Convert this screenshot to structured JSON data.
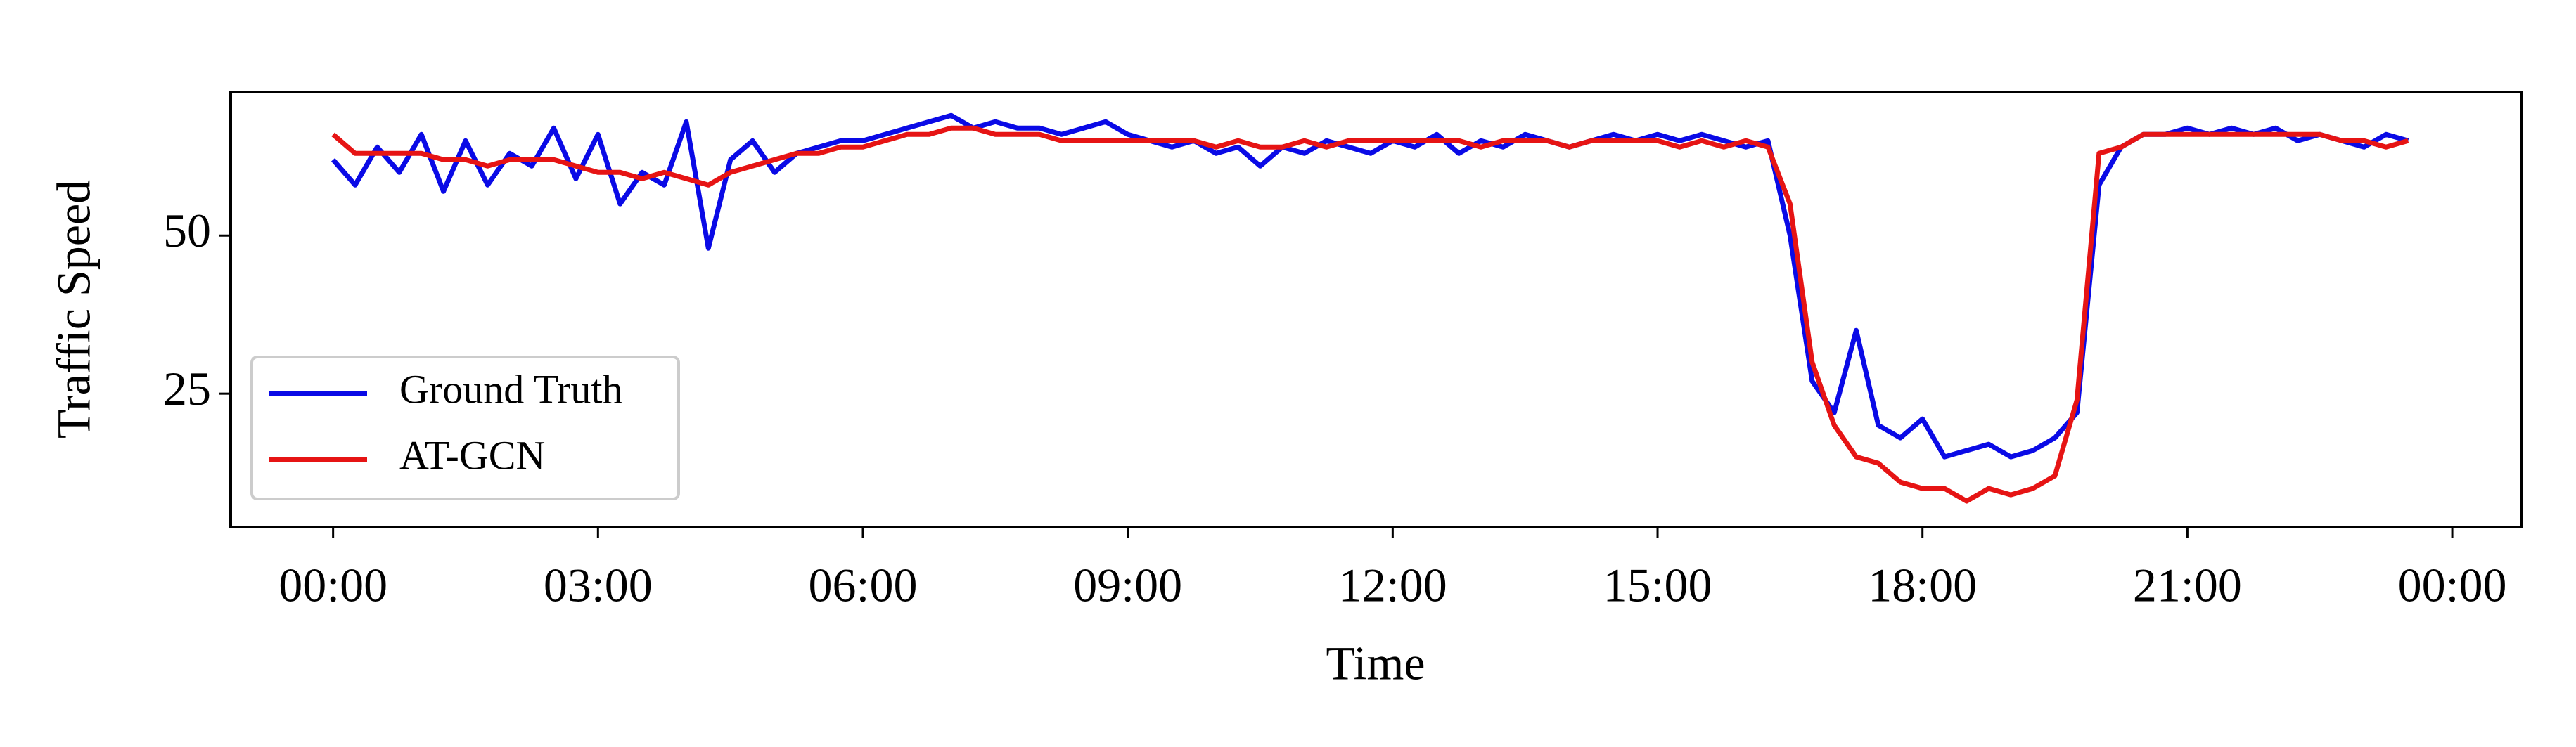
{
  "chart_data": {
    "type": "line",
    "x_label": "Time",
    "y_label": "Traffic Speed",
    "x": [
      0,
      0.25,
      0.5,
      0.75,
      1,
      1.25,
      1.5,
      1.75,
      2,
      2.25,
      2.5,
      2.75,
      3,
      3.25,
      3.5,
      3.75,
      4,
      4.25,
      4.5,
      4.75,
      5,
      5.25,
      5.5,
      5.75,
      6,
      6.25,
      6.5,
      6.75,
      7,
      7.25,
      7.5,
      7.75,
      8,
      8.25,
      8.5,
      8.75,
      9,
      9.25,
      9.5,
      9.75,
      10,
      10.25,
      10.5,
      10.75,
      11,
      11.25,
      11.5,
      11.75,
      12,
      12.25,
      12.5,
      12.75,
      13,
      13.25,
      13.5,
      13.75,
      14,
      14.25,
      14.5,
      14.75,
      15,
      15.25,
      15.5,
      15.75,
      16,
      16.25,
      16.5,
      16.75,
      17,
      17.25,
      17.5,
      17.75,
      18,
      18.25,
      18.5,
      18.75,
      19,
      19.25,
      19.5,
      19.75,
      20,
      20.25,
      20.5,
      20.75,
      21,
      21.25,
      21.5,
      21.75,
      22,
      22.25,
      22.5,
      22.75,
      23,
      23.25,
      23.5
    ],
    "series": [
      {
        "name": "Ground Truth",
        "color": "#0a0ae6",
        "values": [
          62,
          58,
          64,
          60,
          66,
          57,
          65,
          58,
          63,
          61,
          67,
          59,
          66,
          55,
          60,
          58,
          68,
          48,
          62,
          65,
          60,
          63,
          64,
          65,
          65,
          66,
          67,
          68,
          69,
          67,
          68,
          67,
          67,
          66,
          67,
          68,
          66,
          65,
          64,
          65,
          63,
          64,
          61,
          64,
          63,
          65,
          64,
          63,
          65,
          64,
          66,
          63,
          65,
          64,
          66,
          65,
          64,
          65,
          66,
          65,
          66,
          65,
          66,
          65,
          64,
          65,
          50,
          27,
          22,
          35,
          20,
          18,
          21,
          15,
          16,
          17,
          15,
          16,
          18,
          22,
          58,
          64,
          66,
          66,
          67,
          66,
          67,
          66,
          67,
          65,
          66,
          65,
          64,
          66,
          65
        ]
      },
      {
        "name": "AT-GCN",
        "color": "#e61414",
        "values": [
          66,
          63,
          63,
          63,
          63,
          62,
          62,
          61,
          62,
          62,
          62,
          61,
          60,
          60,
          59,
          60,
          59,
          58,
          60,
          61,
          62,
          63,
          63,
          64,
          64,
          65,
          66,
          66,
          67,
          67,
          66,
          66,
          66,
          65,
          65,
          65,
          65,
          65,
          65,
          65,
          64,
          65,
          64,
          64,
          65,
          64,
          65,
          65,
          65,
          65,
          65,
          65,
          64,
          65,
          65,
          65,
          64,
          65,
          65,
          65,
          65,
          64,
          65,
          64,
          65,
          64,
          55,
          30,
          20,
          15,
          14,
          11,
          10,
          10,
          8,
          10,
          9,
          10,
          12,
          24,
          63,
          64,
          66,
          66,
          66,
          66,
          66,
          66,
          66,
          66,
          66,
          65,
          65,
          64,
          65
        ]
      }
    ],
    "xlim": [
      -1.16,
      24.78
    ],
    "ylim": [
      3.9,
      72.7
    ],
    "xticks": [
      {
        "value": 0,
        "label": "00:00"
      },
      {
        "value": 3,
        "label": "03:00"
      },
      {
        "value": 6,
        "label": "06:00"
      },
      {
        "value": 9,
        "label": "09:00"
      },
      {
        "value": 12,
        "label": "12:00"
      },
      {
        "value": 15,
        "label": "15:00"
      },
      {
        "value": 18,
        "label": "18:00"
      },
      {
        "value": 21,
        "label": "21:00"
      },
      {
        "value": 24,
        "label": "00:00"
      }
    ],
    "yticks": [
      25,
      50
    ],
    "legend": "lower left"
  }
}
